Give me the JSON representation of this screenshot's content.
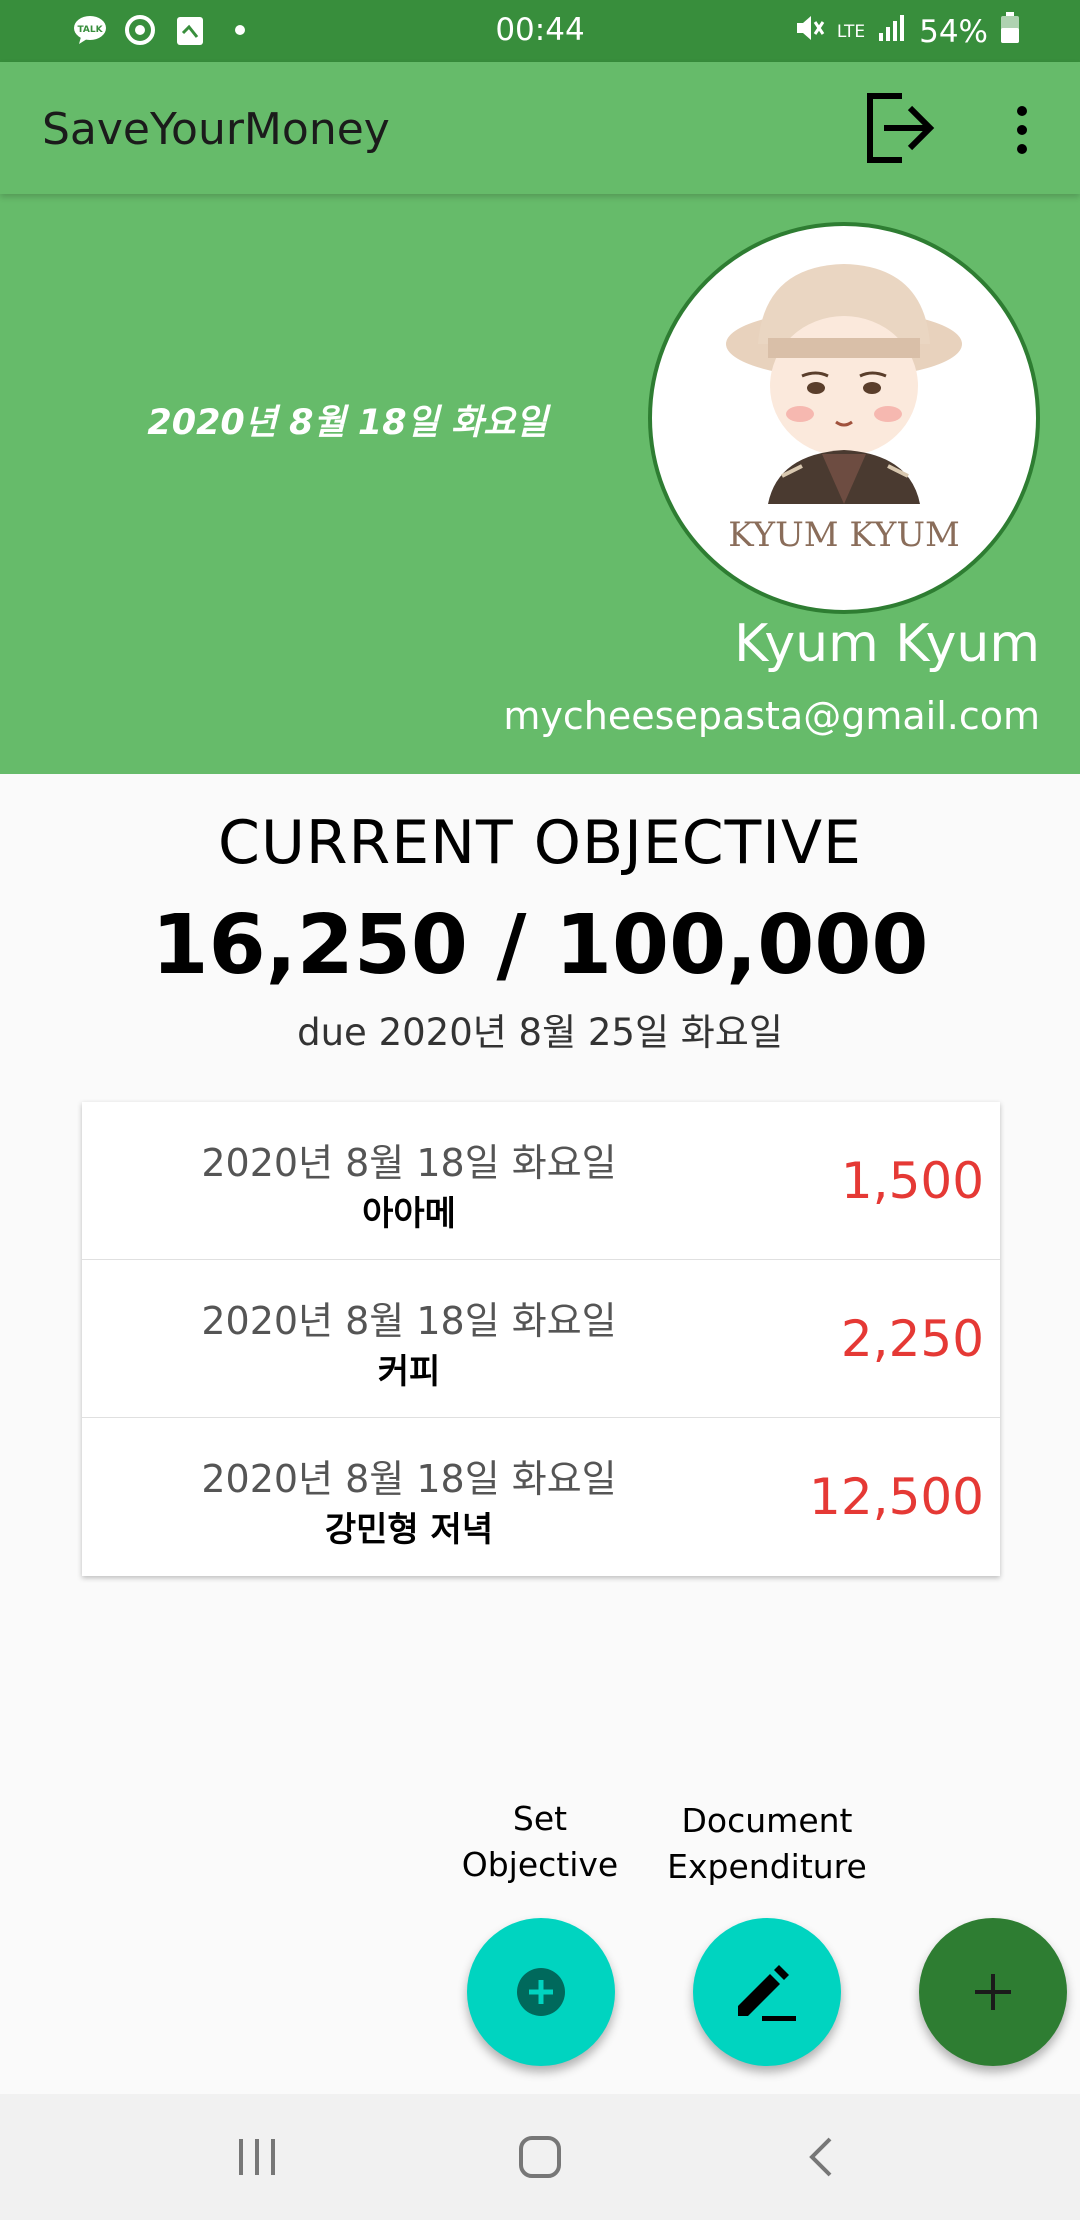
{
  "status_bar": {
    "time": "00:44",
    "battery": "54%",
    "network": "LTE",
    "icons": [
      "kakaotalk-icon",
      "sync-icon",
      "clipboard-icon",
      "dot-icon",
      "mute-icon",
      "lte-icon",
      "signal-icon",
      "battery-icon"
    ]
  },
  "app_bar": {
    "title": "SaveYourMoney",
    "logout_icon": "logout-icon",
    "menu_icon": "more-vertical-icon"
  },
  "header": {
    "date": "2020년 8월 18일 화요일",
    "user_name": "Kyum Kyum",
    "email": "mycheesepasta@gmail.com",
    "avatar_caption": "KYUM KYUM"
  },
  "objective": {
    "title": "CURRENT OBJECTIVE",
    "amount": "16,250 / 100,000",
    "due": "due 2020년 8월 25일 화요일"
  },
  "expenditures": [
    {
      "date": "2020년 8월 18일 화요일",
      "name": "아아메",
      "amount": "1,500"
    },
    {
      "date": "2020년 8월 18일 화요일",
      "name": "커피",
      "amount": "2,250"
    },
    {
      "date": "2020년 8월 18일 화요일",
      "name": "강민형 저녁",
      "amount": "12,500"
    }
  ],
  "fabs": {
    "set_objective_line1": "Set",
    "set_objective_line2": "Objective",
    "document_line1": "Document",
    "document_line2": "Expenditure"
  },
  "colors": {
    "status_bar": "#388e3c",
    "primary": "#66bb6a",
    "fab_secondary": "#00d4c0",
    "fab_main": "#2e7d32",
    "amount_red": "#e53935"
  }
}
